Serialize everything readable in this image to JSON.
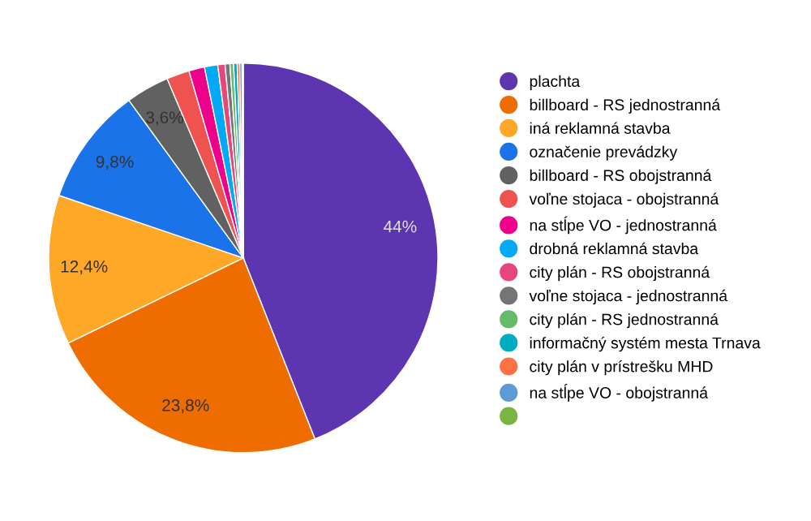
{
  "chart_data": {
    "type": "pie",
    "categories": [
      "plachta",
      "billboard - RS jednostranná",
      "iná reklamná stavba",
      "označenie prevádzky",
      "billboard - RS obojstranná",
      "voľne stojaca - obojstranná",
      "na stĺpe VO - jednostranná",
      "drobná reklamná stavba",
      "city plán - RS obojstranná",
      "voľne stojaca - jednostranná",
      "city plán - RS jednostranná",
      "informačný systém mesta Trnava",
      "city plán v prístrešku MHD",
      "na stĺpe VO - obojstranná",
      null
    ],
    "values": [
      44,
      23.8,
      12.4,
      9.8,
      3.6,
      1.9,
      1.3,
      1.1,
      0.6,
      0.4,
      0.3,
      0.3,
      0.2,
      0.2,
      0.1
    ],
    "value_labels": [
      "44%",
      "23,8%",
      "12,4%",
      "9,8%",
      "3,6%",
      null,
      null,
      null,
      null,
      null,
      null,
      null,
      null,
      null,
      null
    ],
    "colors": [
      "#5e35b1",
      "#ef6c00",
      "#ffa726",
      "#1a73e8",
      "#616161",
      "#ef5350",
      "#ec008c",
      "#03a9f4",
      "#e8457a",
      "#757575",
      "#66bb6a",
      "#00acc1",
      "#ff7043",
      "#5c9bd6",
      "#7cb342"
    ],
    "legend": "right"
  }
}
